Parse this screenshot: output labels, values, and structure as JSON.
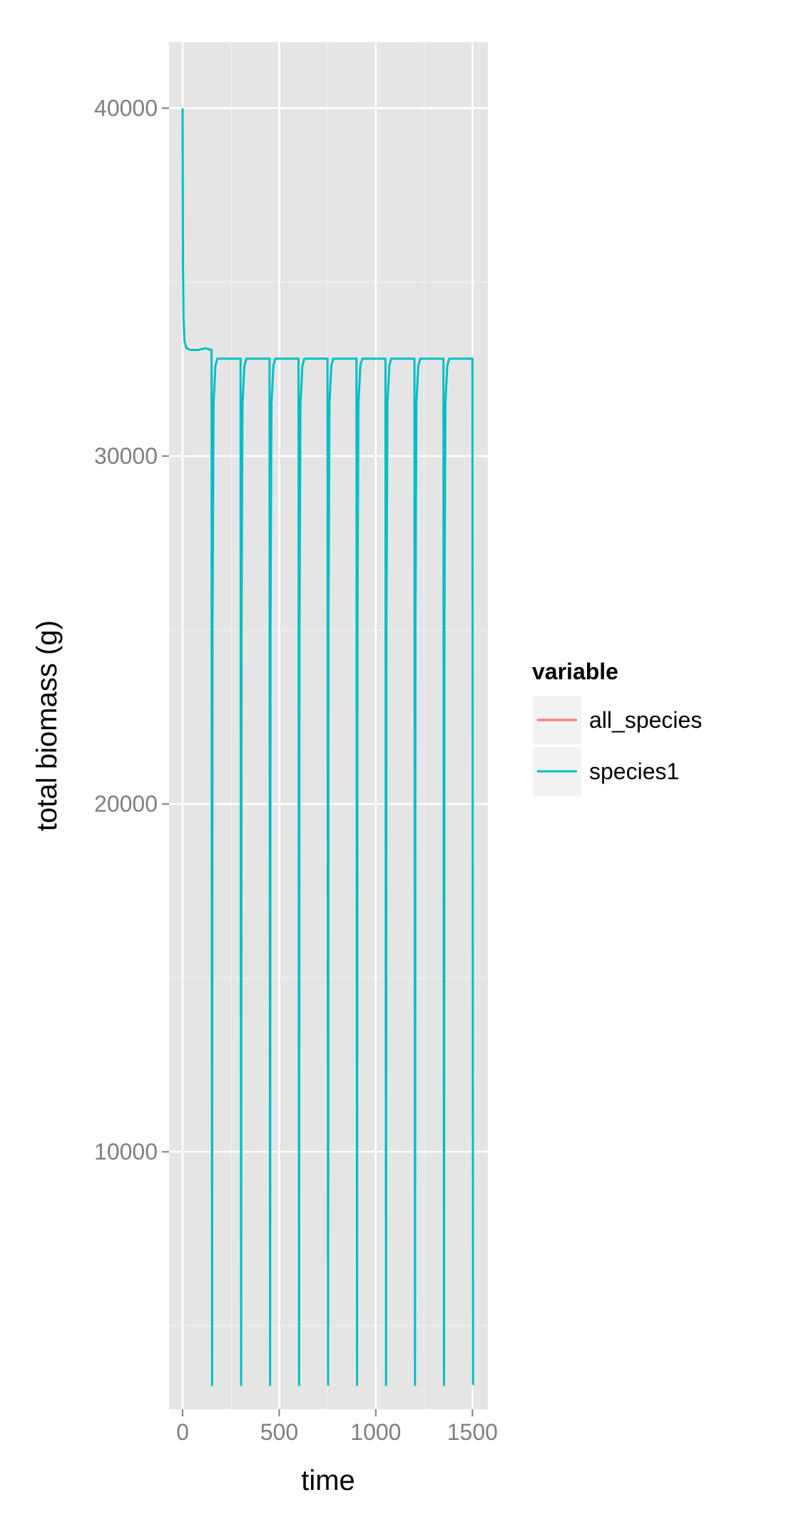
{
  "chart_data": {
    "type": "line",
    "title": "",
    "xlabel": "time",
    "ylabel": "total biomass (g)",
    "xlim": [
      -70,
      1580
    ],
    "ylim": [
      2600,
      41900
    ],
    "x_ticks": [
      0,
      500,
      1000,
      1500
    ],
    "x_tick_labels": [
      "0",
      "500",
      "1000",
      "1500"
    ],
    "y_ticks": [
      10000,
      20000,
      30000,
      40000
    ],
    "y_tick_labels": [
      "10000",
      "20000",
      "30000",
      "40000"
    ],
    "grid": true,
    "legend": {
      "title": "variable",
      "placement": "right",
      "entries": [
        {
          "name": "all_species",
          "color": "#f8766d"
        },
        {
          "name": "species1",
          "color": "#00bfc4"
        }
      ]
    },
    "series": [
      {
        "name": "species1",
        "color": "#00bfc4",
        "x": [
          0,
          2,
          5,
          10,
          20,
          40,
          80,
          120,
          150,
          152,
          153,
          155,
          160,
          170,
          180,
          200,
          250,
          300,
          302,
          303,
          305,
          310,
          320,
          330,
          350,
          400,
          450,
          452,
          453,
          455,
          460,
          470,
          480,
          500,
          550,
          600,
          602,
          603,
          605,
          610,
          620,
          630,
          650,
          700,
          750,
          752,
          753,
          755,
          760,
          770,
          780,
          800,
          850,
          900,
          902,
          903,
          905,
          910,
          920,
          930,
          950,
          1000,
          1050,
          1052,
          1053,
          1055,
          1060,
          1070,
          1080,
          1100,
          1150,
          1200,
          1202,
          1203,
          1205,
          1210,
          1220,
          1230,
          1250,
          1300,
          1350,
          1352,
          1353,
          1355,
          1360,
          1370,
          1380,
          1400,
          1450,
          1500,
          1502,
          1503
        ],
        "values": [
          40000,
          35500,
          34000,
          33300,
          33100,
          33050,
          33050,
          33100,
          33050,
          12000,
          3300,
          25000,
          31500,
          32600,
          32800,
          32800,
          32800,
          32800,
          12000,
          3300,
          25000,
          31500,
          32600,
          32800,
          32800,
          32800,
          32800,
          12000,
          3300,
          25000,
          31500,
          32600,
          32800,
          32800,
          32800,
          32800,
          12000,
          3300,
          25000,
          31500,
          32600,
          32800,
          32800,
          32800,
          32800,
          12000,
          3300,
          25000,
          31500,
          32600,
          32800,
          32800,
          32800,
          32800,
          12000,
          3300,
          25000,
          31500,
          32600,
          32800,
          32800,
          32800,
          32800,
          12000,
          3300,
          25000,
          31500,
          32600,
          32800,
          32800,
          32800,
          32800,
          12000,
          3300,
          25000,
          31500,
          32600,
          32800,
          32800,
          32800,
          32800,
          12000,
          3300,
          25000,
          31500,
          32600,
          32800,
          32800,
          32800,
          32800,
          12000,
          3300
        ]
      }
    ]
  }
}
